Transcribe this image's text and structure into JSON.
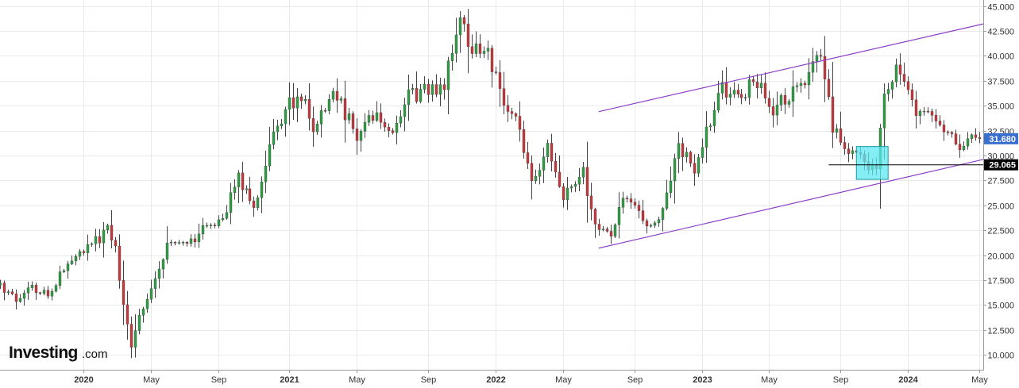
{
  "logo": {
    "brand": "Investing",
    "domain": ".com"
  },
  "chart_data": {
    "type": "candlestick",
    "interval": "weekly",
    "colors": {
      "up": "#2e9e45",
      "down": "#c4373d",
      "channel": "#8e3fc7",
      "highlight": "#5ce8f0",
      "last_price_tag": "#3b6fcf",
      "level_tag": "#000000"
    },
    "grid": {
      "x": true,
      "y": true
    },
    "y_axis": {
      "side": "right",
      "range": [
        8.5,
        45.6
      ],
      "ticks": [
        "10.000",
        "12.500",
        "15.000",
        "17.500",
        "20.000",
        "22.500",
        "25.000",
        "27.500",
        "30.000",
        "32.500",
        "35.000",
        "37.500",
        "40.000",
        "42.500",
        "45.000"
      ]
    },
    "x_axis": {
      "range": [
        "2019-08-12",
        "2024-05-13"
      ],
      "ticks": [
        {
          "label": "2020",
          "date": "2020-01-06",
          "bold": true
        },
        {
          "label": "May",
          "date": "2020-05-04",
          "bold": false
        },
        {
          "label": "Sep",
          "date": "2020-08-31",
          "bold": false
        },
        {
          "label": "2021",
          "date": "2021-01-04",
          "bold": true
        },
        {
          "label": "May",
          "date": "2021-05-03",
          "bold": false
        },
        {
          "label": "Sep",
          "date": "2021-09-06",
          "bold": false
        },
        {
          "label": "2022",
          "date": "2022-01-03",
          "bold": true
        },
        {
          "label": "May",
          "date": "2022-05-02",
          "bold": false
        },
        {
          "label": "Sep",
          "date": "2022-09-05",
          "bold": false
        },
        {
          "label": "2023",
          "date": "2023-01-02",
          "bold": true
        },
        {
          "label": "May",
          "date": "2023-05-01",
          "bold": false
        },
        {
          "label": "Sep",
          "date": "2023-09-04",
          "bold": false
        },
        {
          "label": "2024",
          "date": "2024-01-01",
          "bold": true
        },
        {
          "label": "May",
          "date": "2024-05-06",
          "bold": false
        }
      ]
    },
    "price_path": [
      [
        "2019-08-12",
        17.0
      ],
      [
        "2019-09-09",
        15.5
      ],
      [
        "2019-10-07",
        16.8
      ],
      [
        "2019-11-04",
        16.0
      ],
      [
        "2019-12-02",
        18.6
      ],
      [
        "2020-01-06",
        20.6
      ],
      [
        "2020-02-03",
        21.7
      ],
      [
        "2020-02-17",
        22.6
      ],
      [
        "2020-03-02",
        20.5
      ],
      [
        "2020-03-16",
        15.0
      ],
      [
        "2020-03-30",
        10.8
      ],
      [
        "2020-04-13",
        14.0
      ],
      [
        "2020-05-04",
        16.5
      ],
      [
        "2020-06-01",
        20.8
      ],
      [
        "2020-07-06",
        21.0
      ],
      [
        "2020-08-03",
        22.5
      ],
      [
        "2020-09-07",
        23.8
      ],
      [
        "2020-10-05",
        27.7
      ],
      [
        "2020-11-02",
        24.8
      ],
      [
        "2020-11-30",
        30.8
      ],
      [
        "2021-01-04",
        35.2
      ],
      [
        "2021-02-01",
        36.2
      ],
      [
        "2021-02-15",
        32.5
      ],
      [
        "2021-03-15",
        36.2
      ],
      [
        "2021-04-05",
        35.0
      ],
      [
        "2021-05-03",
        32.0
      ],
      [
        "2021-06-07",
        34.2
      ],
      [
        "2021-07-05",
        32.2
      ],
      [
        "2021-08-02",
        35.8
      ],
      [
        "2021-09-06",
        36.7
      ],
      [
        "2021-10-04",
        37.0
      ],
      [
        "2021-10-25",
        42.8
      ],
      [
        "2021-11-08",
        43.2
      ],
      [
        "2021-11-22",
        40.5
      ],
      [
        "2021-12-20",
        40.8
      ],
      [
        "2022-01-10",
        36.2
      ],
      [
        "2022-02-07",
        33.5
      ],
      [
        "2022-03-07",
        27.5
      ],
      [
        "2022-04-04",
        30.8
      ],
      [
        "2022-05-02",
        26.0
      ],
      [
        "2022-06-06",
        28.5
      ],
      [
        "2022-06-20",
        24.5
      ],
      [
        "2022-07-04",
        22.5
      ],
      [
        "2022-07-25",
        22.0
      ],
      [
        "2022-08-15",
        25.5
      ],
      [
        "2022-09-05",
        25.0
      ],
      [
        "2022-10-03",
        22.6
      ],
      [
        "2022-10-24",
        24.8
      ],
      [
        "2022-11-21",
        31.0
      ],
      [
        "2022-12-19",
        28.6
      ],
      [
        "2023-01-09",
        32.5
      ],
      [
        "2023-02-06",
        36.8
      ],
      [
        "2023-03-06",
        35.8
      ],
      [
        "2023-04-10",
        37.5
      ],
      [
        "2023-05-08",
        34.6
      ],
      [
        "2023-06-05",
        36.2
      ],
      [
        "2023-07-03",
        37.5
      ],
      [
        "2023-07-31",
        39.8
      ],
      [
        "2023-08-21",
        33.0
      ],
      [
        "2023-09-11",
        30.8
      ],
      [
        "2023-10-02",
        30.4
      ],
      [
        "2023-10-23",
        29.0
      ],
      [
        "2023-11-06",
        29.3
      ],
      [
        "2023-11-20",
        36.0
      ],
      [
        "2023-12-11",
        38.8
      ],
      [
        "2023-12-25",
        37.5
      ],
      [
        "2024-01-15",
        34.5
      ],
      [
        "2024-02-12",
        33.8
      ],
      [
        "2024-03-11",
        32.0
      ],
      [
        "2024-04-01",
        30.8
      ],
      [
        "2024-04-22",
        31.8
      ],
      [
        "2024-05-06",
        31.68
      ]
    ],
    "annotations": {
      "channel_upper": {
        "from": [
          "2022-07-04",
          34.4
        ],
        "to": [
          "2024-05-13",
          43.2
        ]
      },
      "channel_lower": {
        "from": [
          "2022-07-04",
          20.7
        ],
        "to": [
          "2024-05-13",
          29.6
        ]
      },
      "support_line": {
        "from": [
          "2023-08-14",
          29.065
        ],
        "to": [
          "2024-05-13",
          29.065
        ]
      },
      "highlight_box": {
        "from": [
          "2023-10-02",
          27.6
        ],
        "to": [
          "2023-11-27",
          30.9
        ]
      }
    },
    "last_price": "31.680",
    "support_level": "29.065"
  }
}
